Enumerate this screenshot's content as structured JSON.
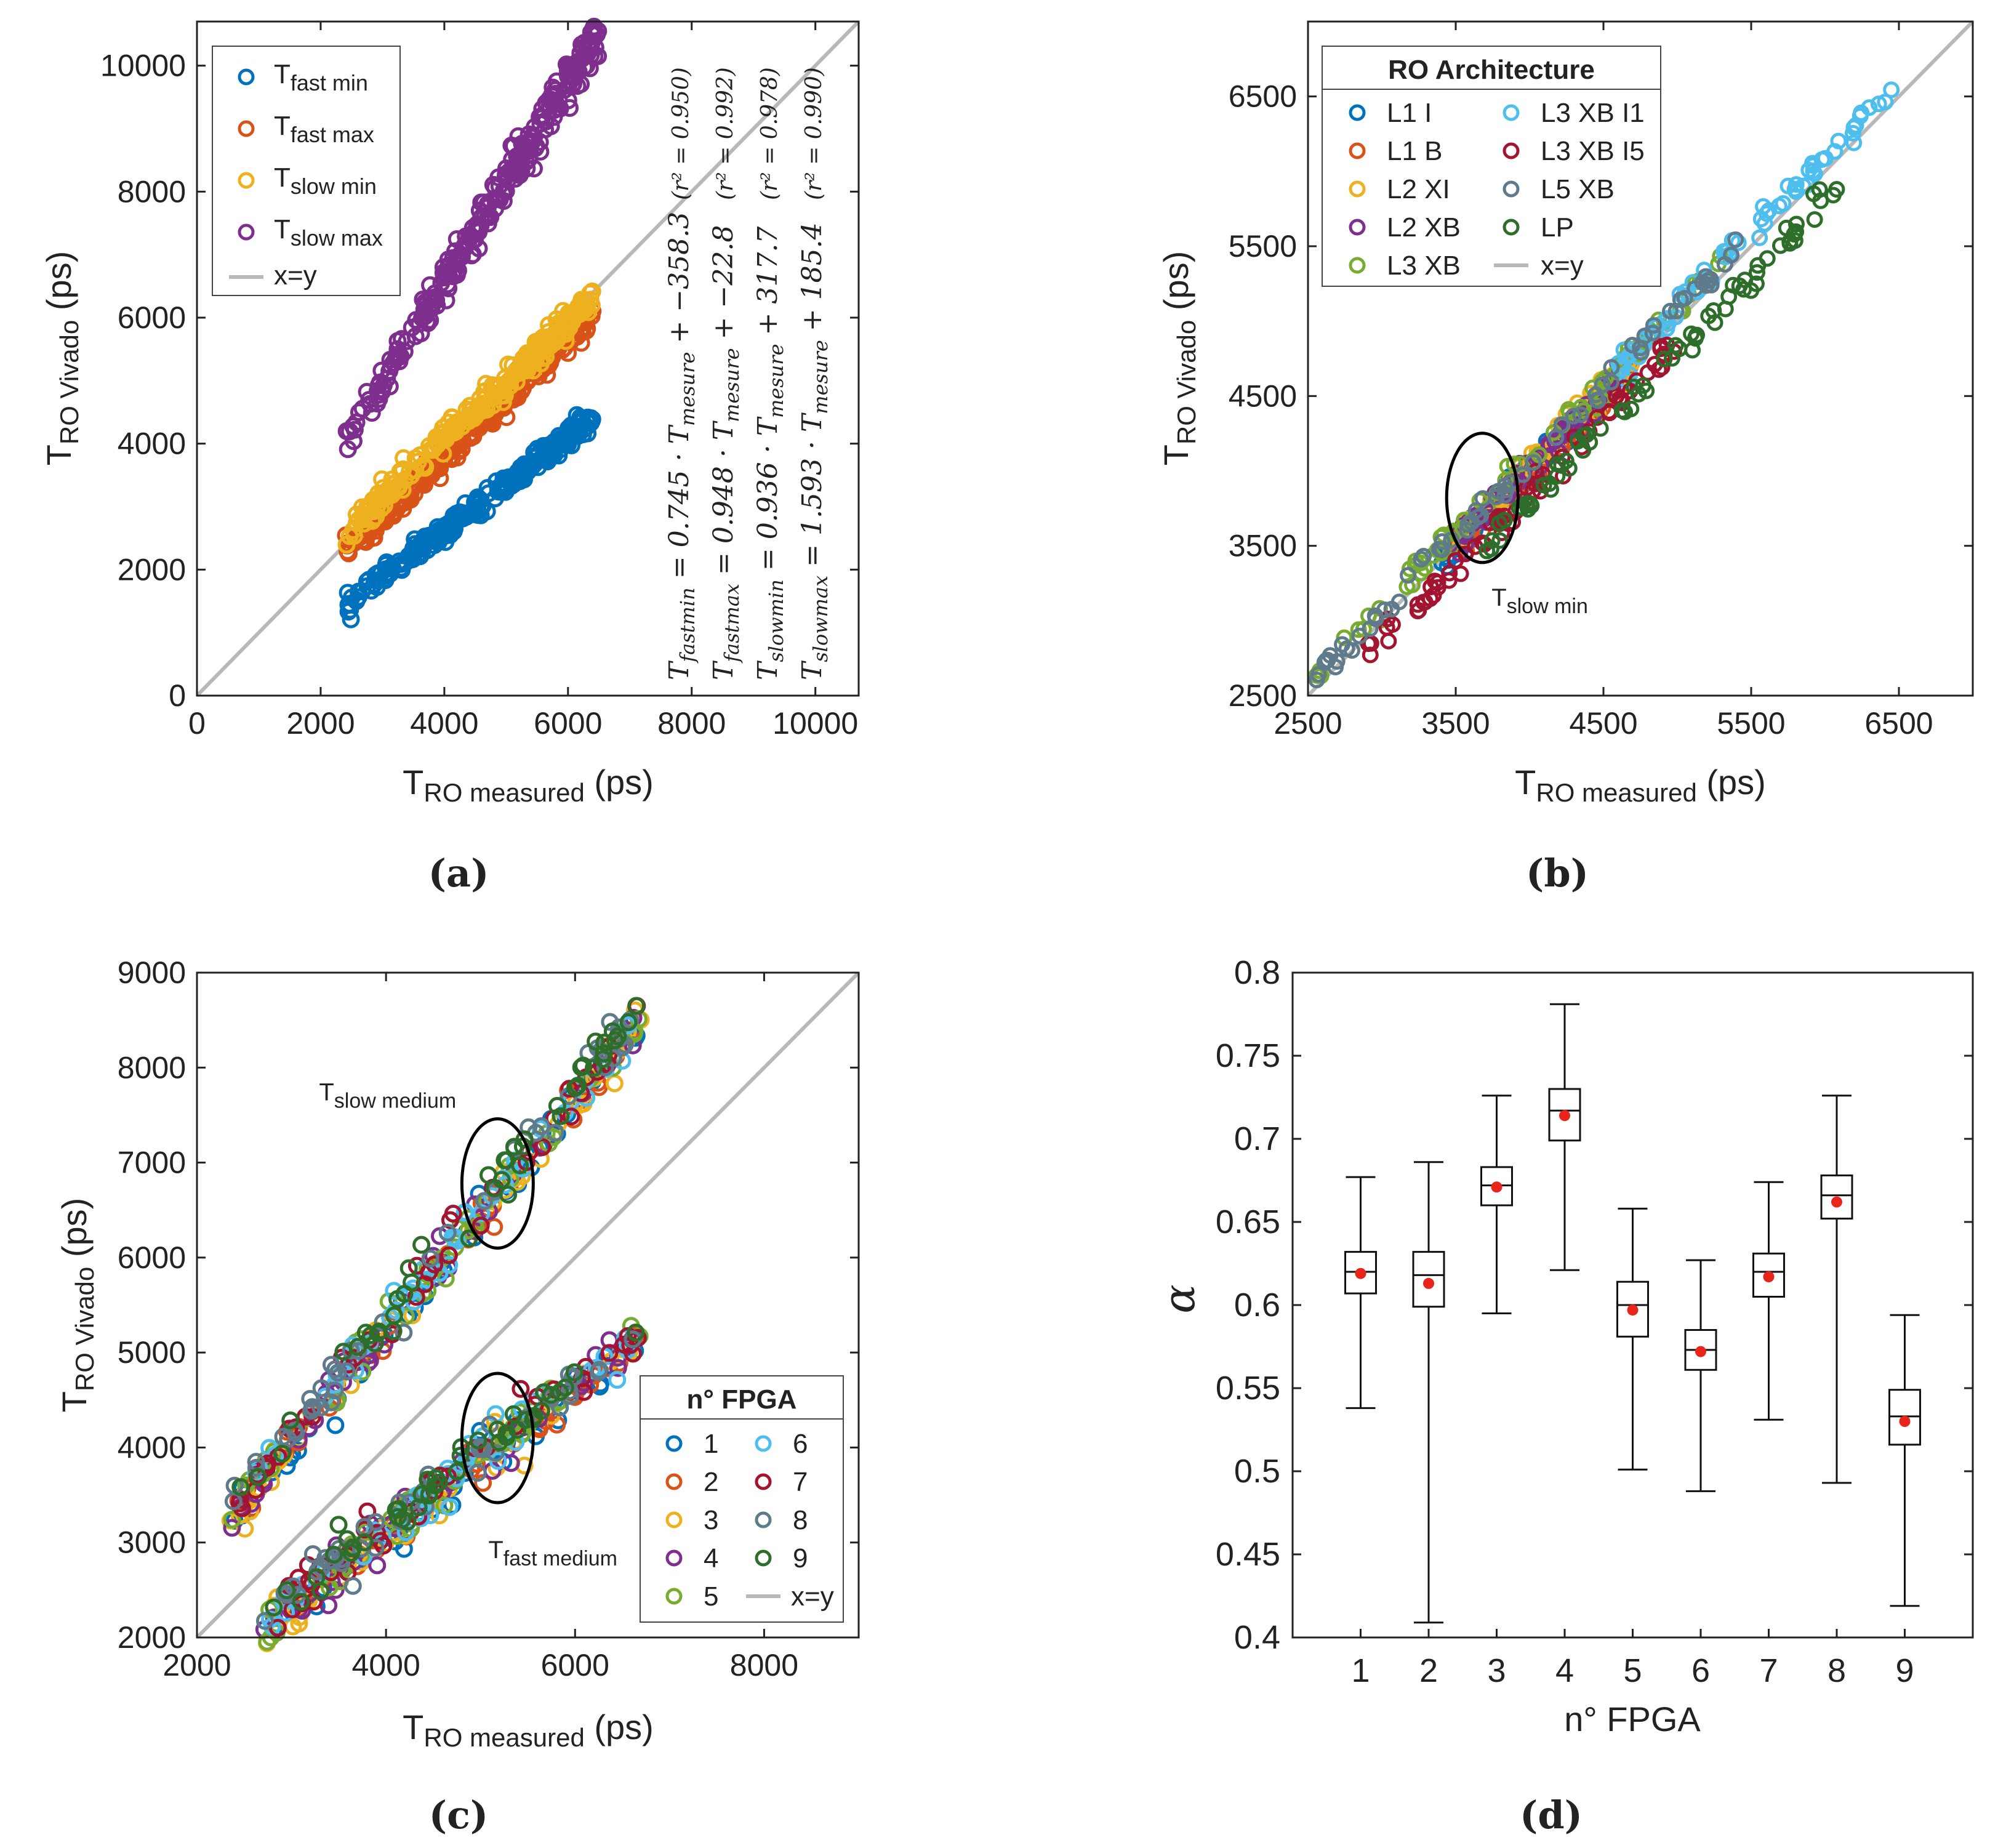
{
  "chart_data": [
    {
      "panel": "a",
      "type": "scatter",
      "tag": "(a)",
      "xlabel": {
        "main": "T",
        "sub": "RO measured",
        "unit": " (ps)"
      },
      "ylabel": {
        "main": "T",
        "sub": "RO Vivado",
        "unit": " (ps)"
      },
      "xlim": [
        0,
        10700
      ],
      "ylim": [
        0,
        10700
      ],
      "xticks": [
        0,
        2000,
        4000,
        6000,
        8000,
        10000
      ],
      "yticks": [
        0,
        2000,
        4000,
        6000,
        8000,
        10000
      ],
      "reference_line": {
        "label": "x=y",
        "color": "#b8b8b8"
      },
      "legend": {
        "placement": "top-left"
      },
      "series": [
        {
          "main": "T",
          "sub": "fast min",
          "color": "#0072bd",
          "slope": 0.745,
          "intercept": -358.3,
          "x_range": [
            2400,
            6400
          ]
        },
        {
          "main": "T",
          "sub": "fast max",
          "color": "#d95319",
          "slope": 0.948,
          "intercept": -22.8,
          "x_range": [
            2400,
            6400
          ]
        },
        {
          "main": "T",
          "sub": "slow min",
          "color": "#edb120",
          "slope": 0.936,
          "intercept": 317.7,
          "x_range": [
            2400,
            6400
          ]
        },
        {
          "main": "T",
          "sub": "slow max",
          "color": "#7e2f8e",
          "slope": 1.593,
          "intercept": 185.4,
          "x_range": [
            2400,
            6500
          ]
        }
      ],
      "equations": [
        {
          "lhs_main": "T",
          "lhs_sub": "fastmin",
          "rhs": " = 0.745 · T",
          "rhs_sub": "mesure",
          "tail": " + −358.3",
          "r2": "(r² = 0.950)"
        },
        {
          "lhs_main": "T",
          "lhs_sub": "fastmax",
          "rhs": " = 0.948 · T",
          "rhs_sub": "mesure",
          "tail": " + −22.8",
          "r2": "(r² = 0.992)"
        },
        {
          "lhs_main": "T",
          "lhs_sub": "slowmin",
          "rhs": " = 0.936 · T",
          "rhs_sub": "mesure",
          "tail": " + 317.7",
          "r2": "(r² = 0.978)"
        },
        {
          "lhs_main": "T",
          "lhs_sub": "slowmax",
          "rhs": " = 1.593 · T",
          "rhs_sub": "mesure",
          "tail": " + 185.4",
          "r2": "(r² = 0.990)"
        }
      ]
    },
    {
      "panel": "b",
      "type": "scatter",
      "tag": "(b)",
      "xlabel": {
        "main": "T",
        "sub": "RO measured",
        "unit": " (ps)"
      },
      "ylabel": {
        "main": "T",
        "sub": "RO Vivado",
        "unit": " (ps)"
      },
      "xlim": [
        2500,
        7000
      ],
      "ylim": [
        2500,
        7000
      ],
      "xticks": [
        2500,
        3500,
        4500,
        5500,
        6500
      ],
      "yticks": [
        2500,
        3500,
        4500,
        5500,
        6500
      ],
      "reference_line": {
        "label": "x=y",
        "color": "#b8b8b8"
      },
      "legend": {
        "title": "RO Architecture",
        "placement": "top-left"
      },
      "annotation": {
        "main": "T",
        "sub": "slow min",
        "ellipse_center": [
          3680,
          3820
        ]
      },
      "series": [
        {
          "name": "L1 I",
          "color": "#0072bd",
          "x_range": [
            3400,
            4600
          ],
          "offset": 0
        },
        {
          "name": "L1 B",
          "color": "#d95319",
          "x_range": [
            3400,
            4700
          ],
          "offset": -20
        },
        {
          "name": "L2 XI",
          "color": "#edb120",
          "x_range": [
            3500,
            4700
          ],
          "offset": 30
        },
        {
          "name": "L2 XB",
          "color": "#7e2f8e",
          "x_range": [
            3500,
            4600
          ],
          "offset": 20
        },
        {
          "name": "L3 XB",
          "color": "#77ac30",
          "x_range": [
            2550,
            5300
          ],
          "offset": 80
        },
        {
          "name": "L3 XB I1",
          "color": "#4dbeee",
          "x_range": [
            4600,
            6450
          ],
          "offset": 90
        },
        {
          "name": "L3 XB I5",
          "color": "#a2142f",
          "x_range": [
            2850,
            5000
          ],
          "offset": -130
        },
        {
          "name": "L5 XB",
          "color": "#5f7a8a",
          "x_range": [
            2550,
            5400
          ],
          "offset": 60
        },
        {
          "name": "LP",
          "color": "#2c6e2a",
          "x_range": [
            3700,
            6200
          ],
          "offset": -190
        }
      ],
      "legend_extra": "x=y"
    },
    {
      "panel": "c",
      "type": "scatter",
      "tag": "(c)",
      "xlabel": {
        "main": "T",
        "sub": "RO measured",
        "unit": " (ps)"
      },
      "ylabel": {
        "main": "T",
        "sub": "RO Vivado",
        "unit": " (ps)"
      },
      "xlim": [
        2000,
        9000
      ],
      "ylim": [
        2000,
        9000
      ],
      "xticks": [
        2000,
        4000,
        6000,
        8000
      ],
      "yticks": [
        2000,
        3000,
        4000,
        5000,
        6000,
        7000,
        8000,
        9000
      ],
      "reference_line": {
        "label": "x=y",
        "color": "#b8b8b8"
      },
      "legend": {
        "title": "n° FPGA",
        "placement": "bottom-right"
      },
      "annotations": [
        {
          "main": "T",
          "sub": "slow medium",
          "ellipse_center": [
            5180,
            6780
          ]
        },
        {
          "main": "T",
          "sub": "fast medium",
          "ellipse_center": [
            5180,
            4100
          ]
        }
      ],
      "series": [
        {
          "name": "1",
          "color": "#0072bd"
        },
        {
          "name": "2",
          "color": "#d95319"
        },
        {
          "name": "3",
          "color": "#edb120"
        },
        {
          "name": "4",
          "color": "#7e2f8e"
        },
        {
          "name": "5",
          "color": "#77ac30"
        },
        {
          "name": "6",
          "color": "#4dbeee"
        },
        {
          "name": "7",
          "color": "#a2142f"
        },
        {
          "name": "8",
          "color": "#5f7a8a"
        },
        {
          "name": "9",
          "color": "#2c6e2a"
        }
      ],
      "upper_band": {
        "x_range": [
          2350,
          6700
        ],
        "y_range": [
          3300,
          8500
        ]
      },
      "lower_band": {
        "x_range": [
          2700,
          6700
        ],
        "y_range": [
          2150,
          5200
        ]
      },
      "legend_extra": "x=y"
    },
    {
      "panel": "d",
      "type": "box",
      "tag": "(d)",
      "xlabel": "n° FPGA",
      "ylabel": "α",
      "ylim": [
        0.4,
        0.8
      ],
      "yticks": [
        0.4,
        0.45,
        0.5,
        0.55,
        0.6,
        0.65,
        0.7,
        0.75,
        0.8
      ],
      "mean_color": "#e8241b",
      "categories": [
        "1",
        "2",
        "3",
        "4",
        "5",
        "6",
        "7",
        "8",
        "9"
      ],
      "boxes": [
        {
          "min": 0.538,
          "q1": 0.607,
          "median": 0.62,
          "q3": 0.632,
          "max": 0.677,
          "mean": 0.619
        },
        {
          "min": 0.409,
          "q1": 0.599,
          "median": 0.618,
          "q3": 0.632,
          "max": 0.686,
          "mean": 0.613
        },
        {
          "min": 0.595,
          "q1": 0.66,
          "median": 0.672,
          "q3": 0.683,
          "max": 0.726,
          "mean": 0.671
        },
        {
          "min": 0.621,
          "q1": 0.699,
          "median": 0.717,
          "q3": 0.73,
          "max": 0.781,
          "mean": 0.714
        },
        {
          "min": 0.501,
          "q1": 0.581,
          "median": 0.6,
          "q3": 0.614,
          "max": 0.658,
          "mean": 0.597
        },
        {
          "min": 0.488,
          "q1": 0.561,
          "median": 0.573,
          "q3": 0.585,
          "max": 0.627,
          "mean": 0.572
        },
        {
          "min": 0.531,
          "q1": 0.605,
          "median": 0.62,
          "q3": 0.631,
          "max": 0.674,
          "mean": 0.617
        },
        {
          "min": 0.493,
          "q1": 0.652,
          "median": 0.666,
          "q3": 0.678,
          "max": 0.726,
          "mean": 0.662
        },
        {
          "min": 0.419,
          "q1": 0.516,
          "median": 0.533,
          "q3": 0.549,
          "max": 0.594,
          "mean": 0.53
        }
      ]
    }
  ]
}
